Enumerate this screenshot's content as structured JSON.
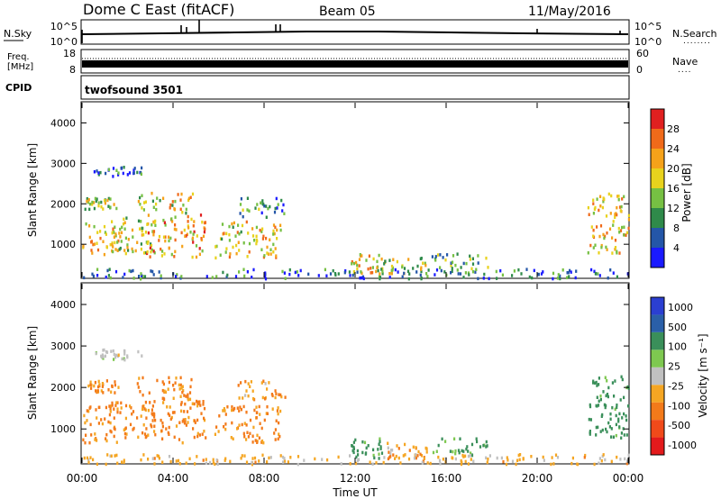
{
  "header": {
    "station": "Dome C East (fitACF)",
    "beam": "Beam 05",
    "date": "11/May/2016"
  },
  "sky_panel": {
    "left_label": "N.Sky",
    "left_ticks": [
      "10^5",
      "10^0"
    ],
    "right_ticks": [
      "10^5",
      "10^0"
    ],
    "right_label": "N.Search",
    "right_label_suffix": "........"
  },
  "freq_panel": {
    "left_label_1": "Freq.",
    "left_label_2": "[MHz]",
    "left_ticks": [
      "18",
      "8"
    ],
    "right_ticks": [
      "60",
      "0"
    ],
    "right_label": "Nave",
    "right_label_suffix": "...."
  },
  "cpid": {
    "label": "CPID",
    "value": "twofsound 3501"
  },
  "x_axis": {
    "label": "Time UT",
    "ticks": [
      "00:00",
      "04:00",
      "08:00",
      "12:00",
      "16:00",
      "20:00",
      "00:00"
    ]
  },
  "colors": {
    "power_scale": [
      "#1a1aff",
      "#2456a8",
      "#2f8a4a",
      "#76c043",
      "#e8d21d",
      "#f5a21a",
      "#f06a1a",
      "#e02020"
    ],
    "velocity_scale": [
      "#e31a1c",
      "#f04a1a",
      "#f37a1a",
      "#f5a623",
      "#c0c0c0",
      "#7ec850",
      "#3a8f5a",
      "#2a5fa8",
      "#2b3fd1"
    ]
  },
  "chart_data": [
    {
      "type": "heatmap",
      "title": "",
      "xlabel": "Time UT",
      "ylabel": "Slant Range [km]",
      "xlim": [
        0,
        24
      ],
      "ylim": [
        180,
        4500
      ],
      "yticks": [
        1000,
        2000,
        3000,
        4000
      ],
      "colorbar": {
        "label": "Power [dB]",
        "range": [
          0,
          32
        ],
        "ticks": [
          4,
          8,
          12,
          16,
          20,
          24,
          28
        ]
      },
      "scatter_regions": [
        {
          "t0": 0.0,
          "t1": 1.6,
          "r0": 700,
          "r1": 1600,
          "value": 20
        },
        {
          "t0": 1.2,
          "t1": 3.2,
          "r0": 800,
          "r1": 1700,
          "value": 16
        },
        {
          "t0": 2.8,
          "t1": 5.4,
          "r0": 700,
          "r1": 1800,
          "value": 22
        },
        {
          "t0": 5.8,
          "t1": 8.7,
          "r0": 700,
          "r1": 1600,
          "value": 18
        },
        {
          "t0": 0.1,
          "t1": 1.6,
          "r0": 1900,
          "r1": 2200,
          "value": 16
        },
        {
          "t0": 2.4,
          "t1": 4.9,
          "r0": 1800,
          "r1": 2300,
          "value": 18
        },
        {
          "t0": 6.8,
          "t1": 8.9,
          "r0": 1700,
          "r1": 2200,
          "value": 10
        },
        {
          "t0": 0.5,
          "t1": 2.7,
          "r0": 2700,
          "r1": 2950,
          "value": 6
        },
        {
          "t0": 11.8,
          "t1": 13.2,
          "r0": 300,
          "r1": 800,
          "value": 20
        },
        {
          "t0": 13.2,
          "t1": 15.2,
          "r0": 300,
          "r1": 700,
          "value": 16
        },
        {
          "t0": 15.2,
          "t1": 17.8,
          "r0": 400,
          "r1": 800,
          "value": 12
        },
        {
          "t0": 22.2,
          "t1": 24.0,
          "r0": 800,
          "r1": 2300,
          "value": 20
        },
        {
          "t0": 0.0,
          "t1": 24.0,
          "r0": 180,
          "r1": 420,
          "value": 8
        }
      ]
    },
    {
      "type": "heatmap",
      "title": "",
      "xlabel": "Time UT",
      "ylabel": "Slant Range [km]",
      "xlim": [
        0,
        24
      ],
      "ylim": [
        180,
        4500
      ],
      "yticks": [
        1000,
        2000,
        3000,
        4000
      ],
      "colorbar": {
        "label": "Velocity [m s⁻¹]",
        "ticks": [
          "1000",
          "500",
          "100",
          "25",
          "-25",
          "-100",
          "-500",
          "-1000"
        ]
      },
      "scatter_regions": [
        {
          "t0": 0.0,
          "t1": 1.6,
          "r0": 700,
          "r1": 1600,
          "value": -150
        },
        {
          "t0": 1.2,
          "t1": 3.2,
          "r0": 800,
          "r1": 1700,
          "value": -150
        },
        {
          "t0": 2.8,
          "t1": 5.4,
          "r0": 700,
          "r1": 1800,
          "value": -150
        },
        {
          "t0": 5.8,
          "t1": 8.7,
          "r0": 700,
          "r1": 1600,
          "value": -120
        },
        {
          "t0": 0.1,
          "t1": 1.6,
          "r0": 1900,
          "r1": 2200,
          "value": -120
        },
        {
          "t0": 2.4,
          "t1": 4.9,
          "r0": 1800,
          "r1": 2300,
          "value": -150
        },
        {
          "t0": 6.8,
          "t1": 8.9,
          "r0": 1700,
          "r1": 2200,
          "value": -100
        },
        {
          "t0": 0.5,
          "t1": 2.7,
          "r0": 2700,
          "r1": 2950,
          "value": 0
        },
        {
          "t0": 11.8,
          "t1": 13.2,
          "r0": 300,
          "r1": 800,
          "value": 150
        },
        {
          "t0": 13.2,
          "t1": 15.2,
          "r0": 300,
          "r1": 700,
          "value": -100
        },
        {
          "t0": 15.2,
          "t1": 17.8,
          "r0": 400,
          "r1": 800,
          "value": 150
        },
        {
          "t0": 22.2,
          "t1": 24.0,
          "r0": 800,
          "r1": 2300,
          "value": 200
        },
        {
          "t0": 0.0,
          "t1": 24.0,
          "r0": 180,
          "r1": 420,
          "value": -50
        }
      ]
    }
  ]
}
